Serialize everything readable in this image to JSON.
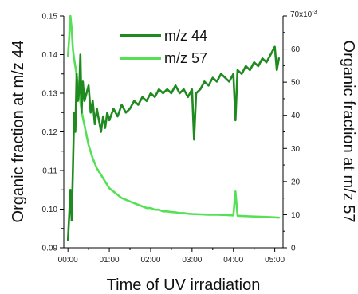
{
  "chart_data": {
    "type": "line",
    "title": "",
    "xlabel": "Time of UV irradiation",
    "ylabel": "Organic fraction at m/z 44",
    "y2label": "Organic fraction at m/z 57",
    "x_tick_labels": [
      "00:00",
      "01:00",
      "02:00",
      "03:00",
      "04:00",
      "05:00"
    ],
    "x_ticks_hours": [
      0,
      1,
      2,
      3,
      4,
      5
    ],
    "xlim_hours": [
      -0.1,
      5.2
    ],
    "ylim": [
      0.09,
      0.15
    ],
    "y_tick_labels": [
      "0.09",
      "0.10",
      "0.11",
      "0.12",
      "0.13",
      "0.14",
      "0.15"
    ],
    "y_ticks": [
      0.09,
      0.1,
      0.11,
      0.12,
      0.13,
      0.14,
      0.15
    ],
    "y2lim": [
      0,
      70
    ],
    "y2_tick_labels": [
      "0",
      "10",
      "20",
      "30",
      "40",
      "50",
      "60"
    ],
    "y2_ticks": [
      0,
      10,
      20,
      30,
      40,
      50,
      60
    ],
    "y2_top_label": "70x10",
    "y2_top_exponent": "-3",
    "grid": false,
    "legend_position": "top-center",
    "series": [
      {
        "name": "m/z 44",
        "axis": "left",
        "color": "#1f8a1f",
        "x_hours": [
          0.0,
          0.03,
          0.06,
          0.09,
          0.12,
          0.15,
          0.18,
          0.21,
          0.24,
          0.27,
          0.3,
          0.33,
          0.36,
          0.4,
          0.45,
          0.5,
          0.55,
          0.6,
          0.65,
          0.7,
          0.75,
          0.8,
          0.85,
          0.9,
          0.95,
          1.0,
          1.1,
          1.2,
          1.3,
          1.4,
          1.5,
          1.6,
          1.7,
          1.8,
          1.9,
          2.0,
          2.1,
          2.2,
          2.3,
          2.4,
          2.5,
          2.6,
          2.7,
          2.8,
          2.9,
          3.0,
          3.05,
          3.1,
          3.2,
          3.3,
          3.4,
          3.5,
          3.6,
          3.7,
          3.8,
          3.9,
          4.0,
          4.05,
          4.1,
          4.2,
          4.3,
          4.4,
          4.5,
          4.6,
          4.7,
          4.8,
          4.9,
          5.0,
          5.05,
          5.1
        ],
        "values": [
          0.092,
          0.098,
          0.105,
          0.097,
          0.11,
          0.125,
          0.12,
          0.135,
          0.128,
          0.13,
          0.14,
          0.125,
          0.133,
          0.128,
          0.13,
          0.132,
          0.125,
          0.128,
          0.122,
          0.126,
          0.123,
          0.12,
          0.124,
          0.121,
          0.125,
          0.123,
          0.126,
          0.124,
          0.127,
          0.125,
          0.126,
          0.128,
          0.127,
          0.129,
          0.128,
          0.13,
          0.129,
          0.131,
          0.13,
          0.131,
          0.13,
          0.132,
          0.13,
          0.131,
          0.129,
          0.131,
          0.118,
          0.13,
          0.131,
          0.133,
          0.132,
          0.134,
          0.133,
          0.135,
          0.134,
          0.133,
          0.135,
          0.123,
          0.136,
          0.135,
          0.137,
          0.136,
          0.138,
          0.137,
          0.139,
          0.138,
          0.14,
          0.142,
          0.136,
          0.139
        ]
      },
      {
        "name": "m/z 57",
        "axis": "right",
        "color": "#55e055",
        "x_hours": [
          0.0,
          0.03,
          0.06,
          0.09,
          0.12,
          0.15,
          0.2,
          0.25,
          0.3,
          0.35,
          0.4,
          0.45,
          0.5,
          0.55,
          0.6,
          0.7,
          0.8,
          0.9,
          1.0,
          1.1,
          1.2,
          1.3,
          1.4,
          1.5,
          1.6,
          1.7,
          1.8,
          1.9,
          2.0,
          2.1,
          2.2,
          2.3,
          2.4,
          2.5,
          2.6,
          2.7,
          2.8,
          2.9,
          3.0,
          3.2,
          3.4,
          3.6,
          3.8,
          4.0,
          4.05,
          4.1,
          4.2,
          4.4,
          4.6,
          4.8,
          5.0,
          5.1
        ],
        "values": [
          58,
          63,
          70,
          66,
          60,
          57,
          53,
          48,
          44,
          40,
          37,
          34,
          31,
          29,
          27,
          24,
          22,
          20,
          18,
          17,
          16,
          15,
          14.5,
          14,
          13.5,
          13,
          12.5,
          12,
          12,
          11.5,
          11.5,
          11,
          11,
          10.8,
          10.7,
          10.5,
          10.5,
          10.3,
          10.2,
          10.1,
          10,
          10,
          9.9,
          9.8,
          17,
          9.7,
          9.6,
          9.5,
          9.4,
          9.3,
          9.2,
          9.1
        ]
      }
    ]
  }
}
